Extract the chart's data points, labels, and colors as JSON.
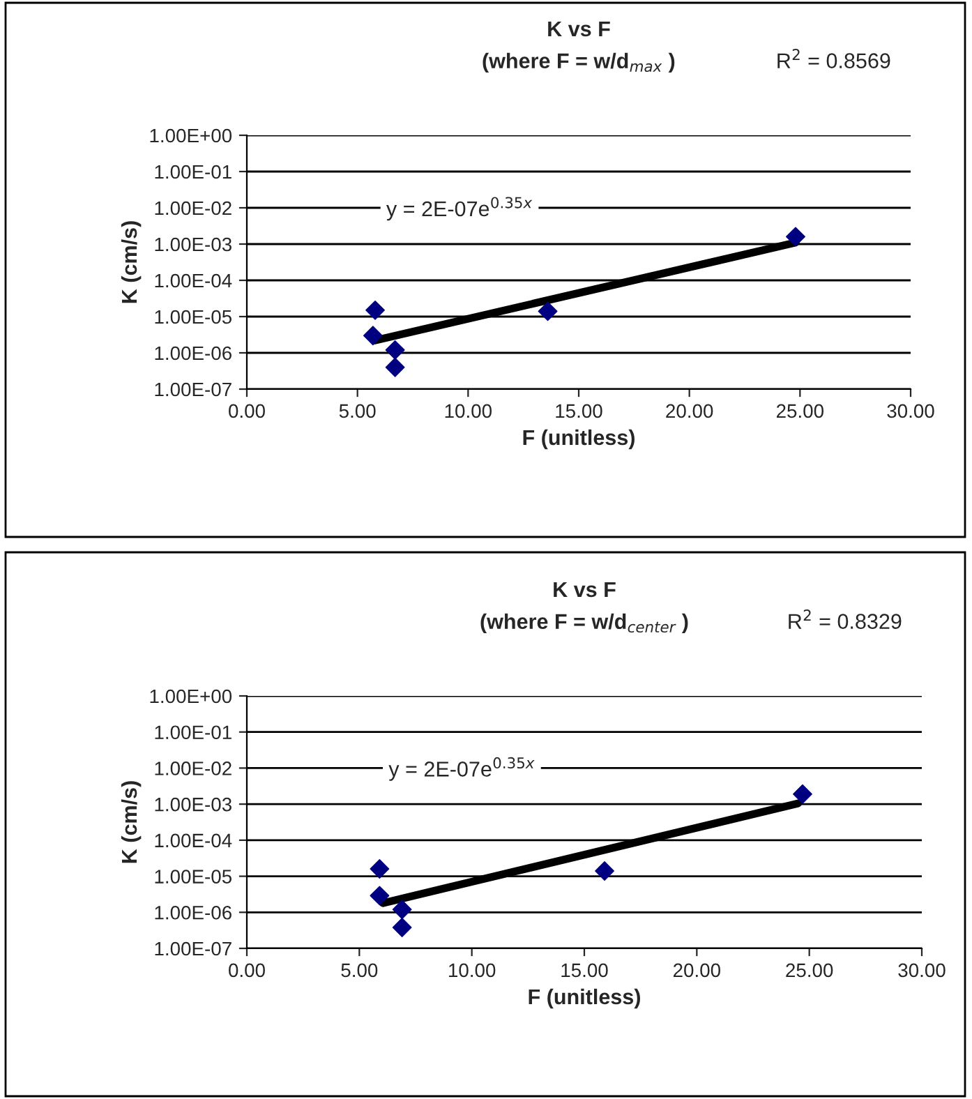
{
  "chart_data": [
    {
      "type": "scatter",
      "title": "K vs F",
      "subtitle": "(where F = w/d$_{max}$ )",
      "xlabel": "F (unitless)",
      "ylabel": "K (cm/s)",
      "log": "y",
      "grid": "y",
      "legend": false,
      "xlim": [
        0,
        30
      ],
      "xticks": [
        {
          "value": 0,
          "label": "0.00"
        },
        {
          "value": 5,
          "label": "5.00"
        },
        {
          "value": 10,
          "label": "10.00"
        },
        {
          "value": 15,
          "label": "15.00"
        },
        {
          "value": 20,
          "label": "20.00"
        },
        {
          "value": 25,
          "label": "25.00"
        },
        {
          "value": 30,
          "label": "30.00"
        }
      ],
      "ylim": [
        1e-07,
        1
      ],
      "yticks": [
        {
          "value": 1e-07,
          "label": "1.00E-07"
        },
        {
          "value": 1e-06,
          "label": "1.00E-06"
        },
        {
          "value": 1e-05,
          "label": "1.00E-05"
        },
        {
          "value": 0.0001,
          "label": "1.00E-04"
        },
        {
          "value": 0.001,
          "label": "1.00E-03"
        },
        {
          "value": 0.01,
          "label": "1.00E-02"
        },
        {
          "value": 0.1,
          "label": "1.00E-01"
        },
        {
          "value": 1,
          "label": "1.00E+00"
        }
      ],
      "annotations": [
        "R$^{2}$ = 0.8569",
        "y = 2E-07e$^{0.35x}$"
      ],
      "series": [
        {
          "marker": "diamond",
          "color": "#000080",
          "x": [
            5.8,
            5.7,
            6.7,
            6.7,
            13.6,
            24.8
          ],
          "values": [
            1.5e-05,
            3e-06,
            1.2e-06,
            4e-07,
            1.4e-05,
            0.0016
          ]
        },
        {
          "type": "line",
          "color": "#000000",
          "x": [
            5.8,
            24.8
          ],
          "values": [
            2.2e-06,
            0.0011
          ]
        }
      ]
    },
    {
      "type": "scatter",
      "title": "K vs F",
      "subtitle": "(where F = w/d$_{center}$ )",
      "xlabel": "F (unitless)",
      "ylabel": "K (cm/s)",
      "log": "y",
      "grid": "y",
      "legend": false,
      "xlim": [
        0,
        30
      ],
      "xticks": [
        {
          "value": 0,
          "label": "0.00"
        },
        {
          "value": 5,
          "label": "5.00"
        },
        {
          "value": 10,
          "label": "10.00"
        },
        {
          "value": 15,
          "label": "15.00"
        },
        {
          "value": 20,
          "label": "20.00"
        },
        {
          "value": 25,
          "label": "25.00"
        },
        {
          "value": 30,
          "label": "30.00"
        }
      ],
      "ylim": [
        1e-07,
        1
      ],
      "yticks": [
        {
          "value": 1e-07,
          "label": "1.00E-07"
        },
        {
          "value": 1e-06,
          "label": "1.00E-06"
        },
        {
          "value": 1e-05,
          "label": "1.00E-05"
        },
        {
          "value": 0.0001,
          "label": "1.00E-04"
        },
        {
          "value": 0.001,
          "label": "1.00E-03"
        },
        {
          "value": 0.01,
          "label": "1.00E-02"
        },
        {
          "value": 0.1,
          "label": "1.00E-01"
        },
        {
          "value": 1,
          "label": "1.00E+00"
        }
      ],
      "annotations": [
        "R$^{2}$ = 0.8329",
        "y = 2E-07e$^{0.35x}$"
      ],
      "series": [
        {
          "marker": "diamond",
          "color": "#000080",
          "x": [
            5.9,
            5.9,
            6.9,
            6.9,
            15.9,
            24.7
          ],
          "values": [
            1.6e-05,
            2.9e-06,
            1.2e-06,
            3.8e-07,
            1.4e-05,
            0.0019
          ]
        },
        {
          "type": "line",
          "color": "#000000",
          "x": [
            6.05,
            24.5
          ],
          "values": [
            1.8e-06,
            0.00105
          ]
        }
      ]
    }
  ]
}
